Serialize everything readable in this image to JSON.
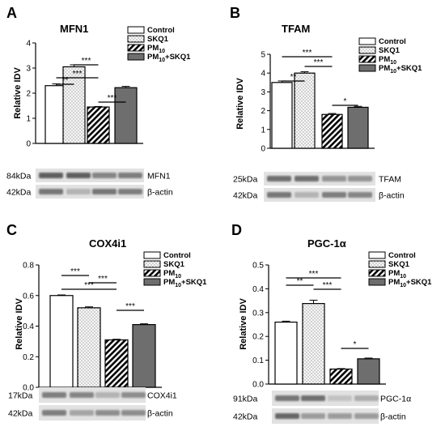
{
  "chart_data": [
    {
      "panel_letter": "A",
      "type": "bar",
      "title": "MFN1",
      "ylabel": "Relative IDV",
      "ylim": [
        0,
        4
      ],
      "yticks": [
        "0",
        "1",
        "2",
        "3",
        "4"
      ],
      "legend": [
        "Control",
        "SKQ1",
        "PM10",
        "PM10+SKQ1"
      ],
      "categories": [
        "Control",
        "SKQ1",
        "PM10",
        "PM10+SKQ1"
      ],
      "values": [
        2.3,
        3.05,
        1.45,
        2.22
      ],
      "errors": [
        0.07,
        0.08,
        0.02,
        0.05
      ],
      "significance": [
        {
          "from": 0,
          "to": 1,
          "label": "**"
        },
        {
          "from": 1,
          "to": 2,
          "label": "***"
        },
        {
          "from": 0,
          "to": 2,
          "label": "***"
        },
        {
          "from": 2,
          "to": 3,
          "label": "***"
        }
      ],
      "blots": [
        {
          "size": "84kDa",
          "protein": "MFN1",
          "intensity": [
            0.85,
            0.85,
            0.6,
            0.65
          ]
        },
        {
          "size": "42kDa",
          "protein": "β-actin",
          "intensity": [
            0.7,
            0.3,
            0.7,
            0.65
          ]
        }
      ]
    },
    {
      "panel_letter": "B",
      "type": "bar",
      "title": "TFAM",
      "ylabel": "Relative IDV",
      "ylim": [
        0,
        5
      ],
      "yticks": [
        "0",
        "1",
        "2",
        "3",
        "4",
        "5"
      ],
      "legend": [
        "Control",
        "SKQ1",
        "PM10",
        "PM10+SKQ1"
      ],
      "categories": [
        "Control",
        "SKQ1",
        "PM10",
        "PM10+SKQ1"
      ],
      "values": [
        3.5,
        4.0,
        1.8,
        2.18
      ],
      "errors": [
        0.08,
        0.07,
        0.05,
        0.05
      ],
      "significance": [
        {
          "from": 0,
          "to": 1,
          "label": "**"
        },
        {
          "from": 1,
          "to": 2,
          "label": "***"
        },
        {
          "from": 0,
          "to": 2,
          "label": "***"
        },
        {
          "from": 2,
          "to": 3,
          "label": "*"
        }
      ],
      "blots": [
        {
          "size": "25kDa",
          "protein": "TFAM",
          "intensity": [
            0.75,
            0.75,
            0.5,
            0.5
          ]
        },
        {
          "size": "42kDa",
          "protein": "β-actin",
          "intensity": [
            0.7,
            0.3,
            0.65,
            0.6
          ]
        }
      ]
    },
    {
      "panel_letter": "C",
      "type": "bar",
      "title": "COX4i1",
      "ylabel": "Relative IDV",
      "ylim": [
        0,
        0.8
      ],
      "yticks": [
        "0.0",
        "0.2",
        "0.4",
        "0.6",
        "0.8"
      ],
      "legend": [
        "Control",
        "SKQ1",
        "PM10",
        "PM10+SKQ1"
      ],
      "categories": [
        "Control",
        "SKQ1",
        "PM10",
        "PM10+SKQ1"
      ],
      "values": [
        0.6,
        0.52,
        0.31,
        0.41
      ],
      "errors": [
        0.004,
        0.006,
        0.004,
        0.005
      ],
      "significance": [
        {
          "from": 0,
          "to": 1,
          "label": "***"
        },
        {
          "from": 1,
          "to": 2,
          "label": "***"
        },
        {
          "from": 0,
          "to": 2,
          "label": "***"
        },
        {
          "from": 2,
          "to": 3,
          "label": "***"
        }
      ],
      "blots": [
        {
          "size": "17kDa",
          "protein": "COX4i1",
          "intensity": [
            0.65,
            0.6,
            0.3,
            0.55
          ]
        },
        {
          "size": "42kDa",
          "protein": "β-actin",
          "intensity": [
            0.65,
            0.4,
            0.55,
            0.55
          ]
        }
      ]
    },
    {
      "panel_letter": "D",
      "type": "bar",
      "title": "PGC-1α",
      "ylabel": "Relative IDV",
      "ylim": [
        0,
        0.5
      ],
      "yticks": [
        "0.0",
        "0.1",
        "0.2",
        "0.3",
        "0.4",
        "0.5"
      ],
      "legend": [
        "Control",
        "SKQ1",
        "PM10",
        "PM10+SKQ1"
      ],
      "categories": [
        "Control",
        "SKQ1",
        "PM10",
        "PM10+SKQ1"
      ],
      "values": [
        0.26,
        0.338,
        0.063,
        0.106
      ],
      "errors": [
        0.004,
        0.014,
        0.002,
        0.003
      ],
      "significance": [
        {
          "from": 0,
          "to": 1,
          "label": "**"
        },
        {
          "from": 1,
          "to": 2,
          "label": "***"
        },
        {
          "from": 0,
          "to": 2,
          "label": "***"
        },
        {
          "from": 2,
          "to": 3,
          "label": "*"
        }
      ],
      "blots": [
        {
          "size": "91kDa",
          "protein": "PGC-1α",
          "intensity": [
            0.7,
            0.75,
            0.2,
            0.35
          ]
        },
        {
          "size": "42kDa",
          "protein": "β-actin",
          "intensity": [
            0.8,
            0.45,
            0.45,
            0.45
          ]
        }
      ]
    }
  ],
  "colors": {
    "control_fill": "#ffffff",
    "skq1_fill": "#f4f4f4",
    "pm10_fill": "#ffffff",
    "pm10_skq1_fill": "#6e6e6e",
    "stroke": "#000000",
    "blot_background": "#e2e2e2",
    "band": "#4a4a4a"
  }
}
